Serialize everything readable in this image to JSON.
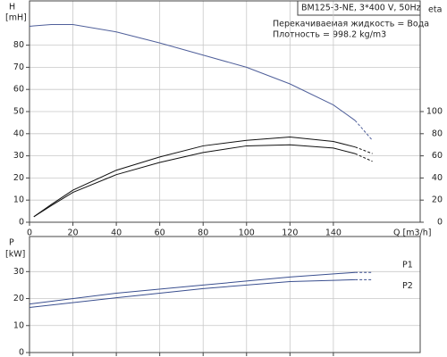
{
  "chart_data": [
    {
      "type": "line",
      "title": "BM125-3-NE, 3*400 V, 50Hz",
      "annotations": [
        "Перекачиваемая жидкость = Вода",
        "Плотность = 998.2 kg/m3"
      ],
      "x_label": "Q [m3/h]",
      "y_label": "H",
      "y_unit": "[mH]",
      "y2_label": "eta",
      "x": [
        0,
        2,
        10,
        20,
        40,
        60,
        80,
        100,
        120,
        140,
        150,
        158
      ],
      "series": [
        {
          "color": "#4f5f9a",
          "values": [
            88.5,
            88.7,
            89.3,
            89.3,
            86,
            81,
            75.5,
            70,
            62.5,
            53,
            46,
            37
          ]
        },
        {
          "color": "#111111",
          "axis": "y2",
          "values": [
            null,
            5,
            16,
            29,
            47,
            59,
            69,
            74,
            77,
            73,
            68,
            62
          ]
        },
        {
          "color": "#111111",
          "axis": "y2",
          "values": [
            null,
            5,
            15,
            27,
            43,
            54,
            63,
            69,
            70,
            67,
            62,
            55
          ]
        }
      ],
      "dashed_after": 150,
      "xlim": [
        0,
        180
      ],
      "xticks": [
        0,
        20,
        40,
        60,
        80,
        100,
        120,
        140
      ],
      "ylim": [
        0,
        100
      ],
      "yticks": [
        0,
        10,
        20,
        30,
        40,
        50,
        60,
        70,
        80
      ],
      "y2lim": [
        0,
        200
      ],
      "y2ticks": [
        0,
        20,
        40,
        60,
        80,
        100
      ],
      "grid": true
    },
    {
      "type": "line",
      "y_label": "P",
      "y_unit": "[kW]",
      "x": [
        0,
        40,
        80,
        120,
        150,
        158
      ],
      "series": [
        {
          "name": "P1",
          "color": "#3a4f8f",
          "values": [
            18,
            22,
            25,
            28,
            29.7,
            29.7
          ]
        },
        {
          "name": "P2",
          "color": "#3a4f8f",
          "values": [
            16.7,
            20.3,
            23.7,
            26.3,
            27,
            27
          ]
        }
      ],
      "dashed_after": 150,
      "xlim": [
        0,
        180
      ],
      "xticks": [
        0,
        20,
        40,
        60,
        80,
        100,
        120,
        140
      ],
      "ylim": [
        0,
        43
      ],
      "yticks": [
        0,
        10,
        20,
        30
      ],
      "grid": true
    }
  ]
}
